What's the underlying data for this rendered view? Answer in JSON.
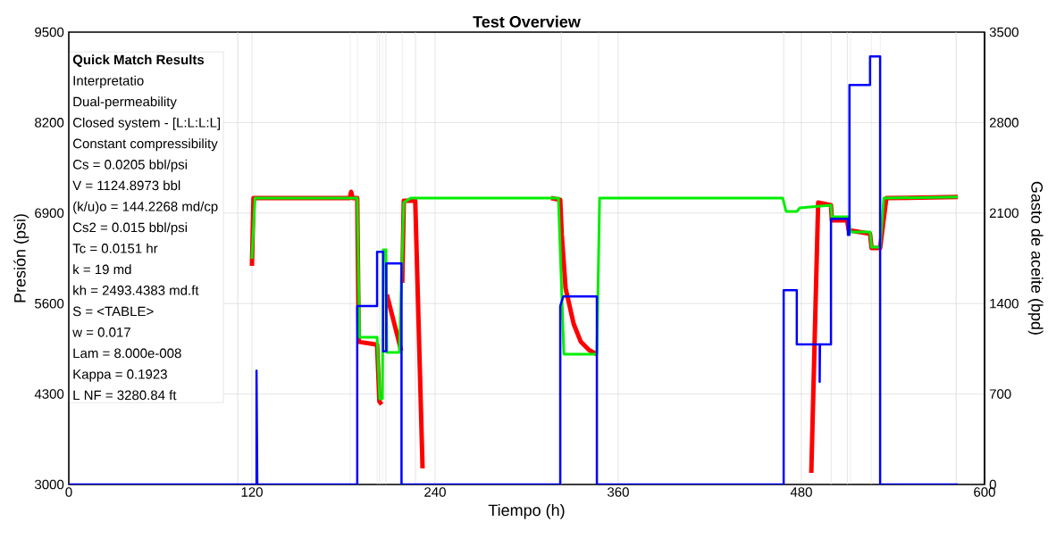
{
  "chart_data": {
    "type": "line",
    "title": "Test Overview",
    "xlabel": "Tiempo  (h)",
    "ylabel": "Presión  (psi)",
    "y2label": "Gasto de aceite (bpd)",
    "xlim": [
      0,
      600
    ],
    "xticks": [
      0,
      120,
      240,
      360,
      480,
      600
    ],
    "ylim": [
      3000,
      9500
    ],
    "yticks": [
      3000,
      4300,
      5600,
      6900,
      8200,
      9500
    ],
    "y2lim": [
      0,
      3500
    ],
    "y2ticks": [
      0,
      700,
      1400,
      2100,
      2800,
      3500
    ],
    "grid": true,
    "marker": "none",
    "line_style": "solid",
    "series": [
      {
        "color": "#ff0000",
        "x": [
          120,
          121,
          184,
          185,
          186,
          189,
          190,
          202,
          203.5,
          205,
          206,
          208.4,
          217.8,
          218,
          218.5,
          219.5,
          227,
          231.8,
          232,
          316,
          322,
          323,
          325.5,
          330.8,
          335.5,
          341,
          346,
          347,
          486.5,
          491,
          499.4,
          500,
          510,
          511,
          525,
          526,
          531.6,
          535.7,
          582.5
        ],
        "values": [
          6141,
          7115,
          7115,
          7205,
          7115,
          7115,
          5050,
          5010,
          4193,
          4150,
          null,
          5730,
          4923,
          null,
          5898,
          7077,
          7077,
          3231,
          null,
          7115,
          7090,
          6590,
          5820,
          5308,
          5050,
          4930,
          4872,
          null,
          3167,
          7051,
          7013,
          6795,
          6795,
          6654,
          6603,
          6398,
          6398,
          7115,
          7130
        ]
      },
      {
        "color": "#00ee00",
        "x": [
          120,
          122,
          189,
          190.5,
          202,
          203.7,
          205.5,
          206,
          207.8,
          208.4,
          216.6,
          219.5,
          224,
          320.8,
          324.4,
          346,
          347.8,
          467.8,
          470,
          477,
          479,
          499.4,
          500,
          511,
          512,
          525,
          526,
          531.6,
          534,
          582.5
        ],
        "values": [
          6244,
          7115,
          7115,
          5116,
          5116,
          4230,
          4230,
          6372,
          6372,
          4898,
          4898,
          7051,
          7115,
          7115,
          4872,
          4872,
          7115,
          7115,
          6923,
          6923,
          6974,
          7013,
          6846,
          6846,
          6628,
          6628,
          6410,
          6410,
          7115,
          7130
        ]
      },
      {
        "color": "#0000ff",
        "axis": "y2",
        "x": [
          0,
          123,
          123,
          123.5,
          189,
          189,
          202,
          202,
          206,
          206,
          208,
          208,
          218,
          218,
          322,
          322,
          324,
          346,
          346,
          468.4,
          468.4,
          477,
          477,
          492,
          492,
          492.2,
          499.4,
          499.4,
          510.5,
          510.5,
          511.5,
          511.5,
          525,
          525,
          531.6,
          531.6,
          582.5
        ],
        "values": [
          0,
          0,
          880,
          0,
          0,
          1380,
          1380,
          1800,
          1800,
          1030,
          1030,
          1710,
          1710,
          0,
          0,
          1380,
          1455,
          1455,
          0,
          0,
          1504,
          1504,
          1083,
          1083,
          794,
          1083,
          1083,
          2056,
          2056,
          1932,
          1932,
          3091,
          3091,
          3312,
          3312,
          0,
          0
        ]
      }
    ],
    "ref_lines": [
      {
        "axis": "x",
        "value": 110.7,
        "color": "#d8d8d8"
      },
      {
        "axis": "x",
        "value": 184.4,
        "color": "#d8d8d8"
      },
      {
        "axis": "x",
        "value": 189.1,
        "color": "#d8d8d8"
      },
      {
        "axis": "x",
        "value": 202,
        "color": "#d8d8d8"
      },
      {
        "axis": "x",
        "value": 203.7,
        "color": "#d8d8d8"
      },
      {
        "axis": "x",
        "value": 205.5,
        "color": "#d8d8d8"
      },
      {
        "axis": "x",
        "value": 207.8,
        "color": "#d8d8d8"
      },
      {
        "axis": "x",
        "value": 218.4,
        "color": "#d8d8d8"
      },
      {
        "axis": "x",
        "value": 227.2,
        "color": "#d8d8d8"
      },
      {
        "axis": "x",
        "value": 322.6,
        "color": "#d8d8d8"
      },
      {
        "axis": "x",
        "value": 347.2,
        "color": "#d8d8d8"
      },
      {
        "axis": "x",
        "value": 468.4,
        "color": "#d8d8d8"
      },
      {
        "axis": "x",
        "value": 499.4,
        "color": "#d8d8d8"
      },
      {
        "axis": "x",
        "value": 510,
        "color": "#d8d8d8"
      },
      {
        "axis": "x",
        "value": 512.3,
        "color": "#d8d8d8"
      },
      {
        "axis": "x",
        "value": 525.8,
        "color": "#d8d8d8"
      },
      {
        "axis": "x",
        "value": 531.6,
        "color": "#d8d8d8"
      },
      {
        "axis": "x",
        "value": 581.4,
        "color": "#d8d8d8"
      }
    ],
    "annotations": [
      "Quick Match Results",
      "Interpretatio",
      "Dual-permeability",
      "Closed system - [L:L:L:L]",
      "Constant compressibility",
      "Cs = 0.0205 bbl/psi",
      "V = 1124.8973 bbl",
      "(k/u)o = 144.2268 md/cp",
      "Cs2 = 0.015 bbl/psi",
      "Tc = 0.0151 hr",
      "k = 19 md",
      "kh = 2493.4383 md.ft",
      "S = <TABLE>",
      "w = 0.017",
      "Lam = 8.000e-008",
      "Kappa = 0.1923",
      "L NF = 3280.84 ft"
    ]
  }
}
